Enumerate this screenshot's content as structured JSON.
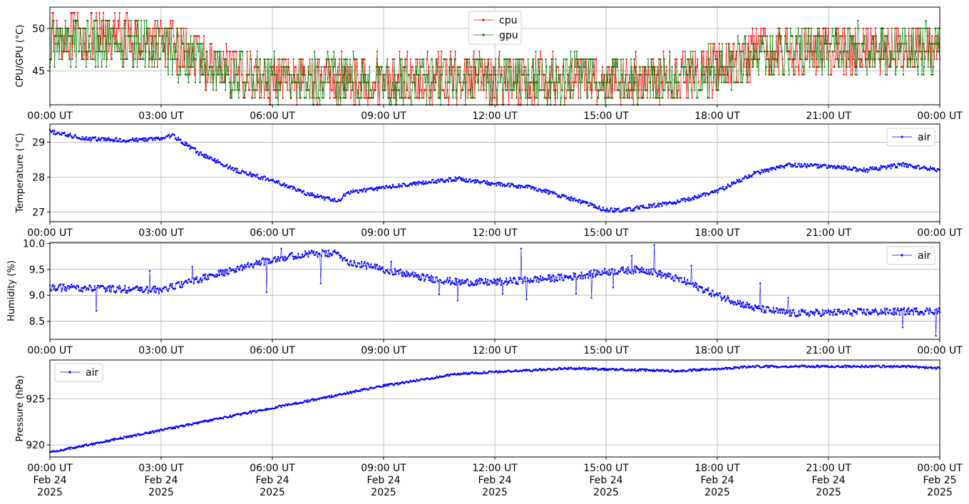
{
  "chart_data": [
    {
      "type": "line",
      "ylabel": "CPU/GPU (°C)",
      "ylim": [
        41,
        52.5
      ],
      "yticks": [
        45,
        50
      ],
      "grid": true,
      "legend_position": "top-center",
      "x_tick_labels": [
        "00:00 UT",
        "03:00 UT",
        "06:00 UT",
        "09:00 UT",
        "12:00 UT",
        "15:00 UT",
        "18:00 UT",
        "21:00 UT",
        "00:00 UT"
      ],
      "x_hours": [
        0,
        3,
        6,
        9,
        12,
        15,
        18,
        21,
        24
      ],
      "series": [
        {
          "name": "cpu",
          "color": "#ff0000",
          "marker": "dot",
          "keyframes_hours": [
            0,
            1,
            3,
            4,
            4.5,
            6,
            9,
            12,
            15,
            16,
            17.5,
            19,
            21,
            24
          ],
          "keyframes_values": [
            49,
            49,
            48.5,
            46.5,
            45,
            44,
            44,
            44,
            44,
            44,
            44.5,
            47,
            47.5,
            47.5
          ],
          "amplitude": 3
        },
        {
          "name": "gpu",
          "color": "#008000",
          "marker": "dot",
          "keyframes_hours": [
            0,
            1,
            3,
            4,
            4.5,
            6,
            9,
            12,
            15,
            16,
            17.5,
            19,
            21,
            24
          ],
          "keyframes_values": [
            48.5,
            48.5,
            48,
            46,
            45,
            44,
            44,
            44,
            44,
            44,
            44.5,
            47,
            47.5,
            47.5
          ],
          "amplitude": 3
        }
      ]
    },
    {
      "type": "line",
      "ylabel": "Temperature (°C)",
      "ylim": [
        26.72,
        29.52
      ],
      "yticks": [
        27,
        28,
        29
      ],
      "grid": true,
      "legend_position": "top-right",
      "x_tick_labels": [
        "00:00 UT",
        "03:00 UT",
        "06:00 UT",
        "09:00 UT",
        "12:00 UT",
        "15:00 UT",
        "18:00 UT",
        "21:00 UT",
        "00:00 UT"
      ],
      "x_hours": [
        0,
        3,
        6,
        9,
        12,
        15,
        18,
        21,
        24
      ],
      "series": [
        {
          "name": "air",
          "color": "#0000ff",
          "marker": "dot",
          "keyframes_hours": [
            0,
            1,
            2,
            3,
            3.3,
            4,
            5,
            6,
            7,
            7.8,
            8,
            9,
            11,
            12,
            13,
            14,
            15,
            15.5,
            17,
            18,
            19,
            20,
            21,
            22,
            23,
            24
          ],
          "keyframes_values": [
            29.3,
            29.1,
            29.05,
            29.1,
            29.2,
            28.7,
            28.2,
            27.9,
            27.5,
            27.3,
            27.55,
            27.7,
            27.95,
            27.8,
            27.7,
            27.4,
            27.05,
            27.05,
            27.3,
            27.6,
            28.1,
            28.35,
            28.3,
            28.2,
            28.35,
            28.2
          ],
          "amplitude": 0.06
        }
      ]
    },
    {
      "type": "line",
      "ylabel": "Humidity (%)",
      "ylim": [
        8.15,
        10.02
      ],
      "yticks": [
        8.5,
        9.0,
        9.5,
        10.0
      ],
      "ytick_labels": [
        "8.5",
        "9.0",
        "9.5",
        "10.0"
      ],
      "grid": true,
      "legend_position": "top-right",
      "x_tick_labels": [
        "00:00 UT",
        "03:00 UT",
        "06:00 UT",
        "09:00 UT",
        "12:00 UT",
        "15:00 UT",
        "18:00 UT",
        "21:00 UT",
        "00:00 UT"
      ],
      "x_hours": [
        0,
        3,
        6,
        9,
        12,
        15,
        18,
        21,
        24
      ],
      "series": [
        {
          "name": "air",
          "color": "#0000ff",
          "marker": "dot",
          "keyframes_hours": [
            0,
            3,
            4,
            5,
            6,
            7,
            7.8,
            8,
            9,
            10,
            11,
            12,
            14,
            15,
            16,
            17,
            18,
            19,
            20,
            24
          ],
          "keyframes_values": [
            9.15,
            9.1,
            9.3,
            9.5,
            9.7,
            9.8,
            9.8,
            9.65,
            9.5,
            9.35,
            9.25,
            9.25,
            9.35,
            9.45,
            9.5,
            9.3,
            9.0,
            8.75,
            8.65,
            8.7
          ],
          "amplitude": 0.07,
          "spikes": [
            [
              1.25,
              8.7
            ],
            [
              2.7,
              9.47
            ],
            [
              3.85,
              9.55
            ],
            [
              5.85,
              9.06
            ],
            [
              6.25,
              9.9
            ],
            [
              7.3,
              9.23
            ],
            [
              9.2,
              9.65
            ],
            [
              10.5,
              9.02
            ],
            [
              11.0,
              8.9
            ],
            [
              12.2,
              9.03
            ],
            [
              12.7,
              9.9
            ],
            [
              12.85,
              8.92
            ],
            [
              14.2,
              9.03
            ],
            [
              14.6,
              8.95
            ],
            [
              15.2,
              9.15
            ],
            [
              15.7,
              9.76
            ],
            [
              16.3,
              9.97
            ],
            [
              17.3,
              9.57
            ],
            [
              19.15,
              9.23
            ],
            [
              19.9,
              8.95
            ],
            [
              23.0,
              8.38
            ],
            [
              23.9,
              8.22
            ]
          ]
        }
      ]
    },
    {
      "type": "line",
      "ylabel": "Pressure (hPa)",
      "ylim": [
        918.7,
        929.2
      ],
      "yticks": [
        920,
        925
      ],
      "grid": true,
      "legend_position": "top-left",
      "x_tick_labels": [
        "00:00 UT",
        "03:00 UT",
        "06:00 UT",
        "09:00 UT",
        "12:00 UT",
        "15:00 UT",
        "18:00 UT",
        "21:00 UT",
        "00:00 UT"
      ],
      "x_date_labels": [
        "Feb 24",
        "Feb 24",
        "Feb 24",
        "Feb 24",
        "Feb 24",
        "Feb 24",
        "Feb 24",
        "Feb 24",
        "Feb 25"
      ],
      "x_year_labels": [
        "2025",
        "2025",
        "2025",
        "2025",
        "2025",
        "2025",
        "2025",
        "2025",
        "2025"
      ],
      "x_hours": [
        0,
        3,
        6,
        9,
        12,
        15,
        18,
        21,
        24
      ],
      "series": [
        {
          "name": "air",
          "color": "#0000ff",
          "marker": "dot",
          "keyframes_hours": [
            0,
            3,
            6,
            9,
            11,
            12,
            14,
            15,
            16,
            17,
            19,
            21,
            23,
            24
          ],
          "keyframes_values": [
            919.2,
            921.6,
            924.0,
            926.4,
            927.7,
            927.9,
            928.3,
            928.2,
            928.1,
            928.0,
            928.5,
            928.5,
            928.5,
            928.3
          ],
          "amplitude": 0.12
        }
      ]
    }
  ]
}
